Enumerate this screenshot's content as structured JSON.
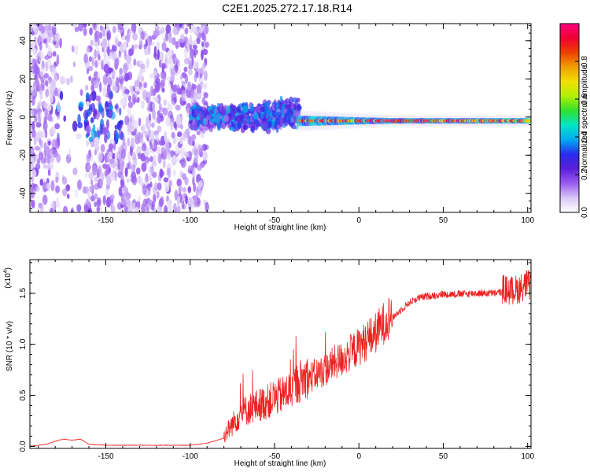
{
  "title": "C2E1.2025.272.17.18.R14",
  "chart_data": [
    {
      "type": "heatmap",
      "name": "spectrogram",
      "xlabel": "Height of straight line (km)",
      "ylabel": "Frequency (Hz)",
      "xlim": [
        -195,
        102
      ],
      "ylim": [
        -50,
        49
      ],
      "x_ticks": [
        -150,
        -100,
        -50,
        0,
        50,
        100
      ],
      "y_ticks": [
        -40,
        -20,
        0,
        20,
        40
      ],
      "x_tick_labels": [
        "-150",
        "-100",
        "-50",
        "0",
        "50",
        "100"
      ],
      "y_tick_labels": [
        "-40",
        "-20",
        "0",
        "20",
        "40"
      ],
      "colorbar": {
        "label": "Normalized spectral amplitude",
        "range": [
          0,
          1
        ],
        "ticks": [
          0.0,
          0.2,
          0.4,
          0.6,
          0.8
        ],
        "tick_labels": [
          "0.0",
          "0.2",
          "0.4",
          "0.6",
          "0.8"
        ],
        "colors": [
          "#ffffff",
          "#d9c8f5",
          "#9b5cf0",
          "#5a1fd9",
          "#2a2af0",
          "#00aaf0",
          "#00e6c8",
          "#30e030",
          "#b0f000",
          "#f0e000",
          "#f0a000",
          "#f04000",
          "#f00030",
          "#ff0080"
        ]
      },
      "features": [
        {
          "region": "x -195 to -90",
          "description_values": {
            "freq_min": -50,
            "freq_max": 49,
            "amplitude": 0.15
          }
        },
        {
          "region": "x -90 to -35",
          "description_values": {
            "freq_min": -10,
            "freq_max": 10,
            "amplitude": 0.3
          }
        },
        {
          "region": "x -35 to 100",
          "description_values": {
            "freq_center": -2,
            "freq_halfwidth": 3,
            "amplitude": 0.7
          }
        }
      ]
    },
    {
      "type": "line",
      "name": "snr",
      "xlabel": "Height of straight line (km)",
      "ylabel": "SNR (10 * v/v)",
      "y_scale_label": "(x10",
      "y_scale_exponent": "4",
      "xlim": [
        -195,
        102
      ],
      "ylim": [
        -0.02,
        1.83
      ],
      "x_ticks": [
        -150,
        -100,
        -50,
        0,
        50,
        100
      ],
      "y_ticks": [
        0.0,
        0.5,
        1.0,
        1.5
      ],
      "x_tick_labels": [
        "-150",
        "-100",
        "-50",
        "0",
        "50",
        "100"
      ],
      "y_tick_labels": [
        "0.0",
        "0.5",
        "1.0",
        "1.5"
      ],
      "color": "#ee2222",
      "series": [
        {
          "name": "SNR",
          "x": [
            -195,
            -185,
            -180,
            -175,
            -170,
            -165,
            -160,
            -150,
            -120,
            -100,
            -90,
            -80,
            -75,
            -70,
            -65,
            -60,
            -55,
            -50,
            -45,
            -40,
            -35,
            -30,
            -25,
            -20,
            -15,
            -10,
            -5,
            0,
            5,
            10,
            15,
            20,
            25,
            30,
            35,
            40,
            50,
            60,
            70,
            80,
            85,
            90,
            95,
            100,
            102
          ],
          "y": [
            0.0,
            0.02,
            0.05,
            0.07,
            0.06,
            0.07,
            0.02,
            0.01,
            0.01,
            0.01,
            0.03,
            0.08,
            0.18,
            0.28,
            0.32,
            0.35,
            0.38,
            0.42,
            0.45,
            0.5,
            0.58,
            0.62,
            0.66,
            0.7,
            0.76,
            0.8,
            0.86,
            0.92,
            0.98,
            1.05,
            1.15,
            1.25,
            1.33,
            1.4,
            1.44,
            1.46,
            1.48,
            1.48,
            1.49,
            1.49,
            1.5,
            1.48,
            1.5,
            1.55,
            1.5
          ]
        }
      ],
      "noise_amplitude": [
        {
          "x_from": -195,
          "x_to": -80,
          "amp": 0.01
        },
        {
          "x_from": -80,
          "x_to": -30,
          "amp": 0.28
        },
        {
          "x_from": -30,
          "x_to": 20,
          "amp": 0.2
        },
        {
          "x_from": 20,
          "x_to": 85,
          "amp": 0.03
        },
        {
          "x_from": 85,
          "x_to": 102,
          "amp": 0.12
        }
      ]
    }
  ]
}
